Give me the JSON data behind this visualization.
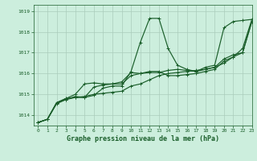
{
  "title": "Graphe pression niveau de la mer (hPa)",
  "background_color": "#cceedd",
  "grid_color": "#aaccbb",
  "line_color": "#1a5e2a",
  "ylim": [
    1013.5,
    1019.3
  ],
  "xlim": [
    -0.5,
    23
  ],
  "yticks": [
    1014,
    1015,
    1016,
    1017,
    1018,
    1019
  ],
  "xticks": [
    0,
    1,
    2,
    3,
    4,
    5,
    6,
    7,
    8,
    9,
    10,
    11,
    12,
    13,
    14,
    15,
    16,
    17,
    18,
    19,
    20,
    21,
    22,
    23
  ],
  "series": [
    {
      "x": [
        0,
        1,
        2,
        3,
        4,
        5,
        6,
        7,
        8,
        9,
        10,
        11,
        12,
        13,
        14,
        15,
        16,
        17,
        18,
        19,
        20,
        21,
        22,
        23
      ],
      "y": [
        1013.65,
        1013.8,
        1014.6,
        1014.8,
        1014.85,
        1014.9,
        1015.0,
        1015.05,
        1015.1,
        1015.15,
        1015.4,
        1015.5,
        1015.7,
        1015.9,
        1016.0,
        1016.05,
        1016.1,
        1016.15,
        1016.2,
        1016.3,
        1016.5,
        1016.8,
        1017.2,
        1018.6
      ]
    },
    {
      "x": [
        0,
        1,
        2,
        3,
        4,
        5,
        6,
        7,
        8,
        9,
        10,
        11,
        12,
        13,
        14,
        15,
        16,
        17,
        18,
        19,
        20,
        21,
        22,
        23
      ],
      "y": [
        1013.65,
        1013.8,
        1014.6,
        1014.8,
        1015.0,
        1015.5,
        1015.55,
        1015.5,
        1015.5,
        1015.5,
        1015.9,
        1016.0,
        1016.1,
        1016.1,
        1015.9,
        1015.9,
        1015.95,
        1016.0,
        1016.1,
        1016.2,
        1016.6,
        1016.8,
        1017.0,
        1018.5
      ]
    },
    {
      "x": [
        0,
        1,
        2,
        3,
        4,
        5,
        6,
        7,
        8,
        9,
        10,
        11,
        12,
        13,
        14,
        15,
        16,
        17,
        18,
        19,
        20,
        21,
        22,
        23
      ],
      "y": [
        1013.65,
        1013.8,
        1014.6,
        1014.75,
        1014.9,
        1014.85,
        1015.35,
        1015.45,
        1015.5,
        1015.6,
        1016.05,
        1016.0,
        1016.05,
        1016.05,
        1016.15,
        1016.2,
        1016.15,
        1016.1,
        1016.2,
        1016.3,
        1016.7,
        1016.9,
        1017.0,
        1018.5
      ]
    },
    {
      "x": [
        0,
        1,
        2,
        3,
        4,
        5,
        6,
        7,
        8,
        9,
        10,
        11,
        12,
        13,
        14,
        15,
        16,
        17,
        18,
        19,
        20,
        21,
        22,
        23
      ],
      "y": [
        1013.65,
        1013.8,
        1014.55,
        1014.75,
        1014.85,
        1014.85,
        1014.95,
        1015.3,
        1015.4,
        1015.4,
        1016.1,
        1017.5,
        1018.65,
        1018.65,
        1017.2,
        1016.4,
        1016.2,
        1016.1,
        1016.3,
        1016.4,
        1018.2,
        1018.5,
        1018.55,
        1018.6
      ]
    }
  ],
  "marker": "+",
  "marker_size": 3.5,
  "linewidth": 0.85,
  "xlabel_fontsize": 6.0,
  "tick_fontsize": 4.5
}
